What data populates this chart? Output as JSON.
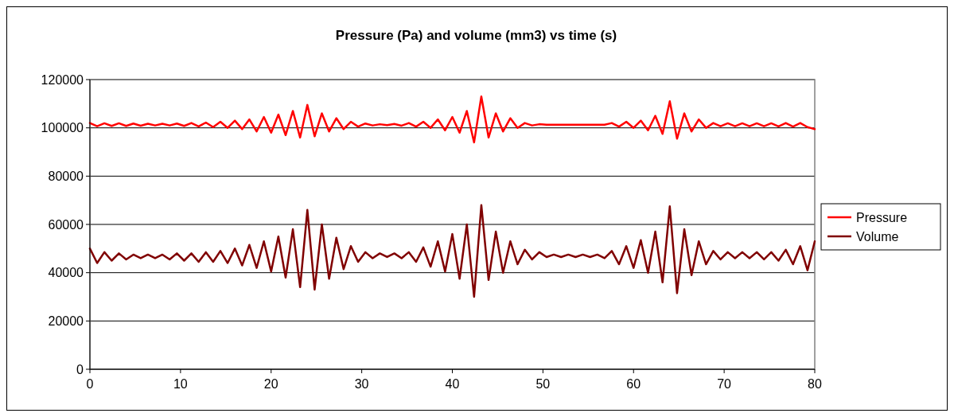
{
  "chart_data": {
    "type": "line",
    "title": "Pressure (Pa) and volume (mm3) vs time (s)",
    "x": [
      0,
      0.8,
      1.6,
      2.4,
      3.2,
      4,
      4.8,
      5.6,
      6.4,
      7.2,
      8,
      8.8,
      9.6,
      10.4,
      11.2,
      12,
      12.8,
      13.6,
      14.4,
      15.2,
      16,
      16.8,
      17.6,
      18.4,
      19.2,
      20,
      20.8,
      21.6,
      22.4,
      23.2,
      24,
      24.8,
      25.6,
      26.4,
      27.2,
      28,
      28.8,
      29.6,
      30.4,
      31.2,
      32,
      32.8,
      33.6,
      34.4,
      35.2,
      36,
      36.8,
      37.6,
      38.4,
      39.2,
      40,
      40.8,
      41.6,
      42.4,
      43.2,
      44,
      44.8,
      45.6,
      46.4,
      47.2,
      48,
      48.8,
      49.6,
      50.4,
      51.2,
      52,
      52.8,
      53.6,
      54.4,
      55.2,
      56,
      56.8,
      57.6,
      58.4,
      59.2,
      60,
      60.8,
      61.6,
      62.4,
      63.2,
      64,
      64.8,
      65.6,
      66.4,
      67.2,
      68,
      68.8,
      69.6,
      70.4,
      71.2,
      72,
      72.8,
      73.6,
      74.4,
      75.2,
      76,
      76.8,
      77.6,
      78.4,
      79.2,
      80
    ],
    "series": [
      {
        "name": "Pressure",
        "color": "#ff0000",
        "values": [
          102000,
          100700,
          101900,
          100800,
          101900,
          100800,
          101800,
          100900,
          101700,
          101000,
          101700,
          101000,
          101800,
          100800,
          102000,
          100600,
          102200,
          100300,
          102500,
          100000,
          103000,
          99500,
          103500,
          98500,
          104500,
          98000,
          105500,
          97000,
          107000,
          96000,
          109500,
          96500,
          106000,
          98500,
          104000,
          99500,
          102500,
          100500,
          101800,
          101000,
          101500,
          101100,
          101600,
          100900,
          102000,
          100500,
          102500,
          100000,
          103500,
          99000,
          104500,
          98000,
          107000,
          94000,
          113000,
          96000,
          106000,
          98500,
          104000,
          100000,
          102000,
          101000,
          101500,
          101300,
          101300,
          101300,
          101300,
          101300,
          101300,
          101300,
          101300,
          101300,
          102000,
          100500,
          102500,
          100000,
          103000,
          99000,
          105000,
          97500,
          111000,
          95500,
          106000,
          98500,
          103500,
          100000,
          102000,
          100700,
          101900,
          100700,
          101900,
          100700,
          101900,
          100700,
          101900,
          100600,
          102000,
          100500,
          102000,
          100300,
          99500
        ]
      },
      {
        "name": "Volume",
        "color": "#800000",
        "values": [
          50000,
          44000,
          48500,
          45000,
          48000,
          45500,
          47500,
          46000,
          47500,
          46000,
          47500,
          45500,
          48000,
          45000,
          48000,
          44500,
          48500,
          44500,
          49000,
          44000,
          50000,
          43000,
          51500,
          42000,
          53000,
          40500,
          55000,
          38000,
          58000,
          34000,
          66000,
          33000,
          60000,
          37500,
          54500,
          41500,
          51000,
          44500,
          48500,
          46000,
          48000,
          46500,
          48000,
          46000,
          48500,
          44500,
          50500,
          42500,
          53000,
          40500,
          56000,
          37500,
          60000,
          30000,
          68000,
          37000,
          57000,
          40000,
          53000,
          43500,
          49500,
          45500,
          48500,
          46500,
          47500,
          46500,
          47500,
          46500,
          47500,
          46500,
          47500,
          46000,
          49000,
          43500,
          51000,
          42000,
          53500,
          40000,
          57000,
          36000,
          67500,
          31500,
          58000,
          39000,
          53000,
          43500,
          49000,
          45500,
          48500,
          46000,
          48500,
          46000,
          48500,
          45500,
          48500,
          45000,
          49500,
          43500,
          51000,
          41000,
          53000
        ]
      }
    ],
    "xlim": [
      0,
      80
    ],
    "xticks": [
      0,
      10,
      20,
      30,
      40,
      50,
      60,
      70,
      80
    ],
    "ylim": [
      0,
      120000
    ],
    "yticks": [
      0,
      20000,
      40000,
      60000,
      80000,
      100000,
      120000
    ],
    "grid": "y",
    "legend": "right",
    "marker": "none",
    "line_style": "solid"
  }
}
